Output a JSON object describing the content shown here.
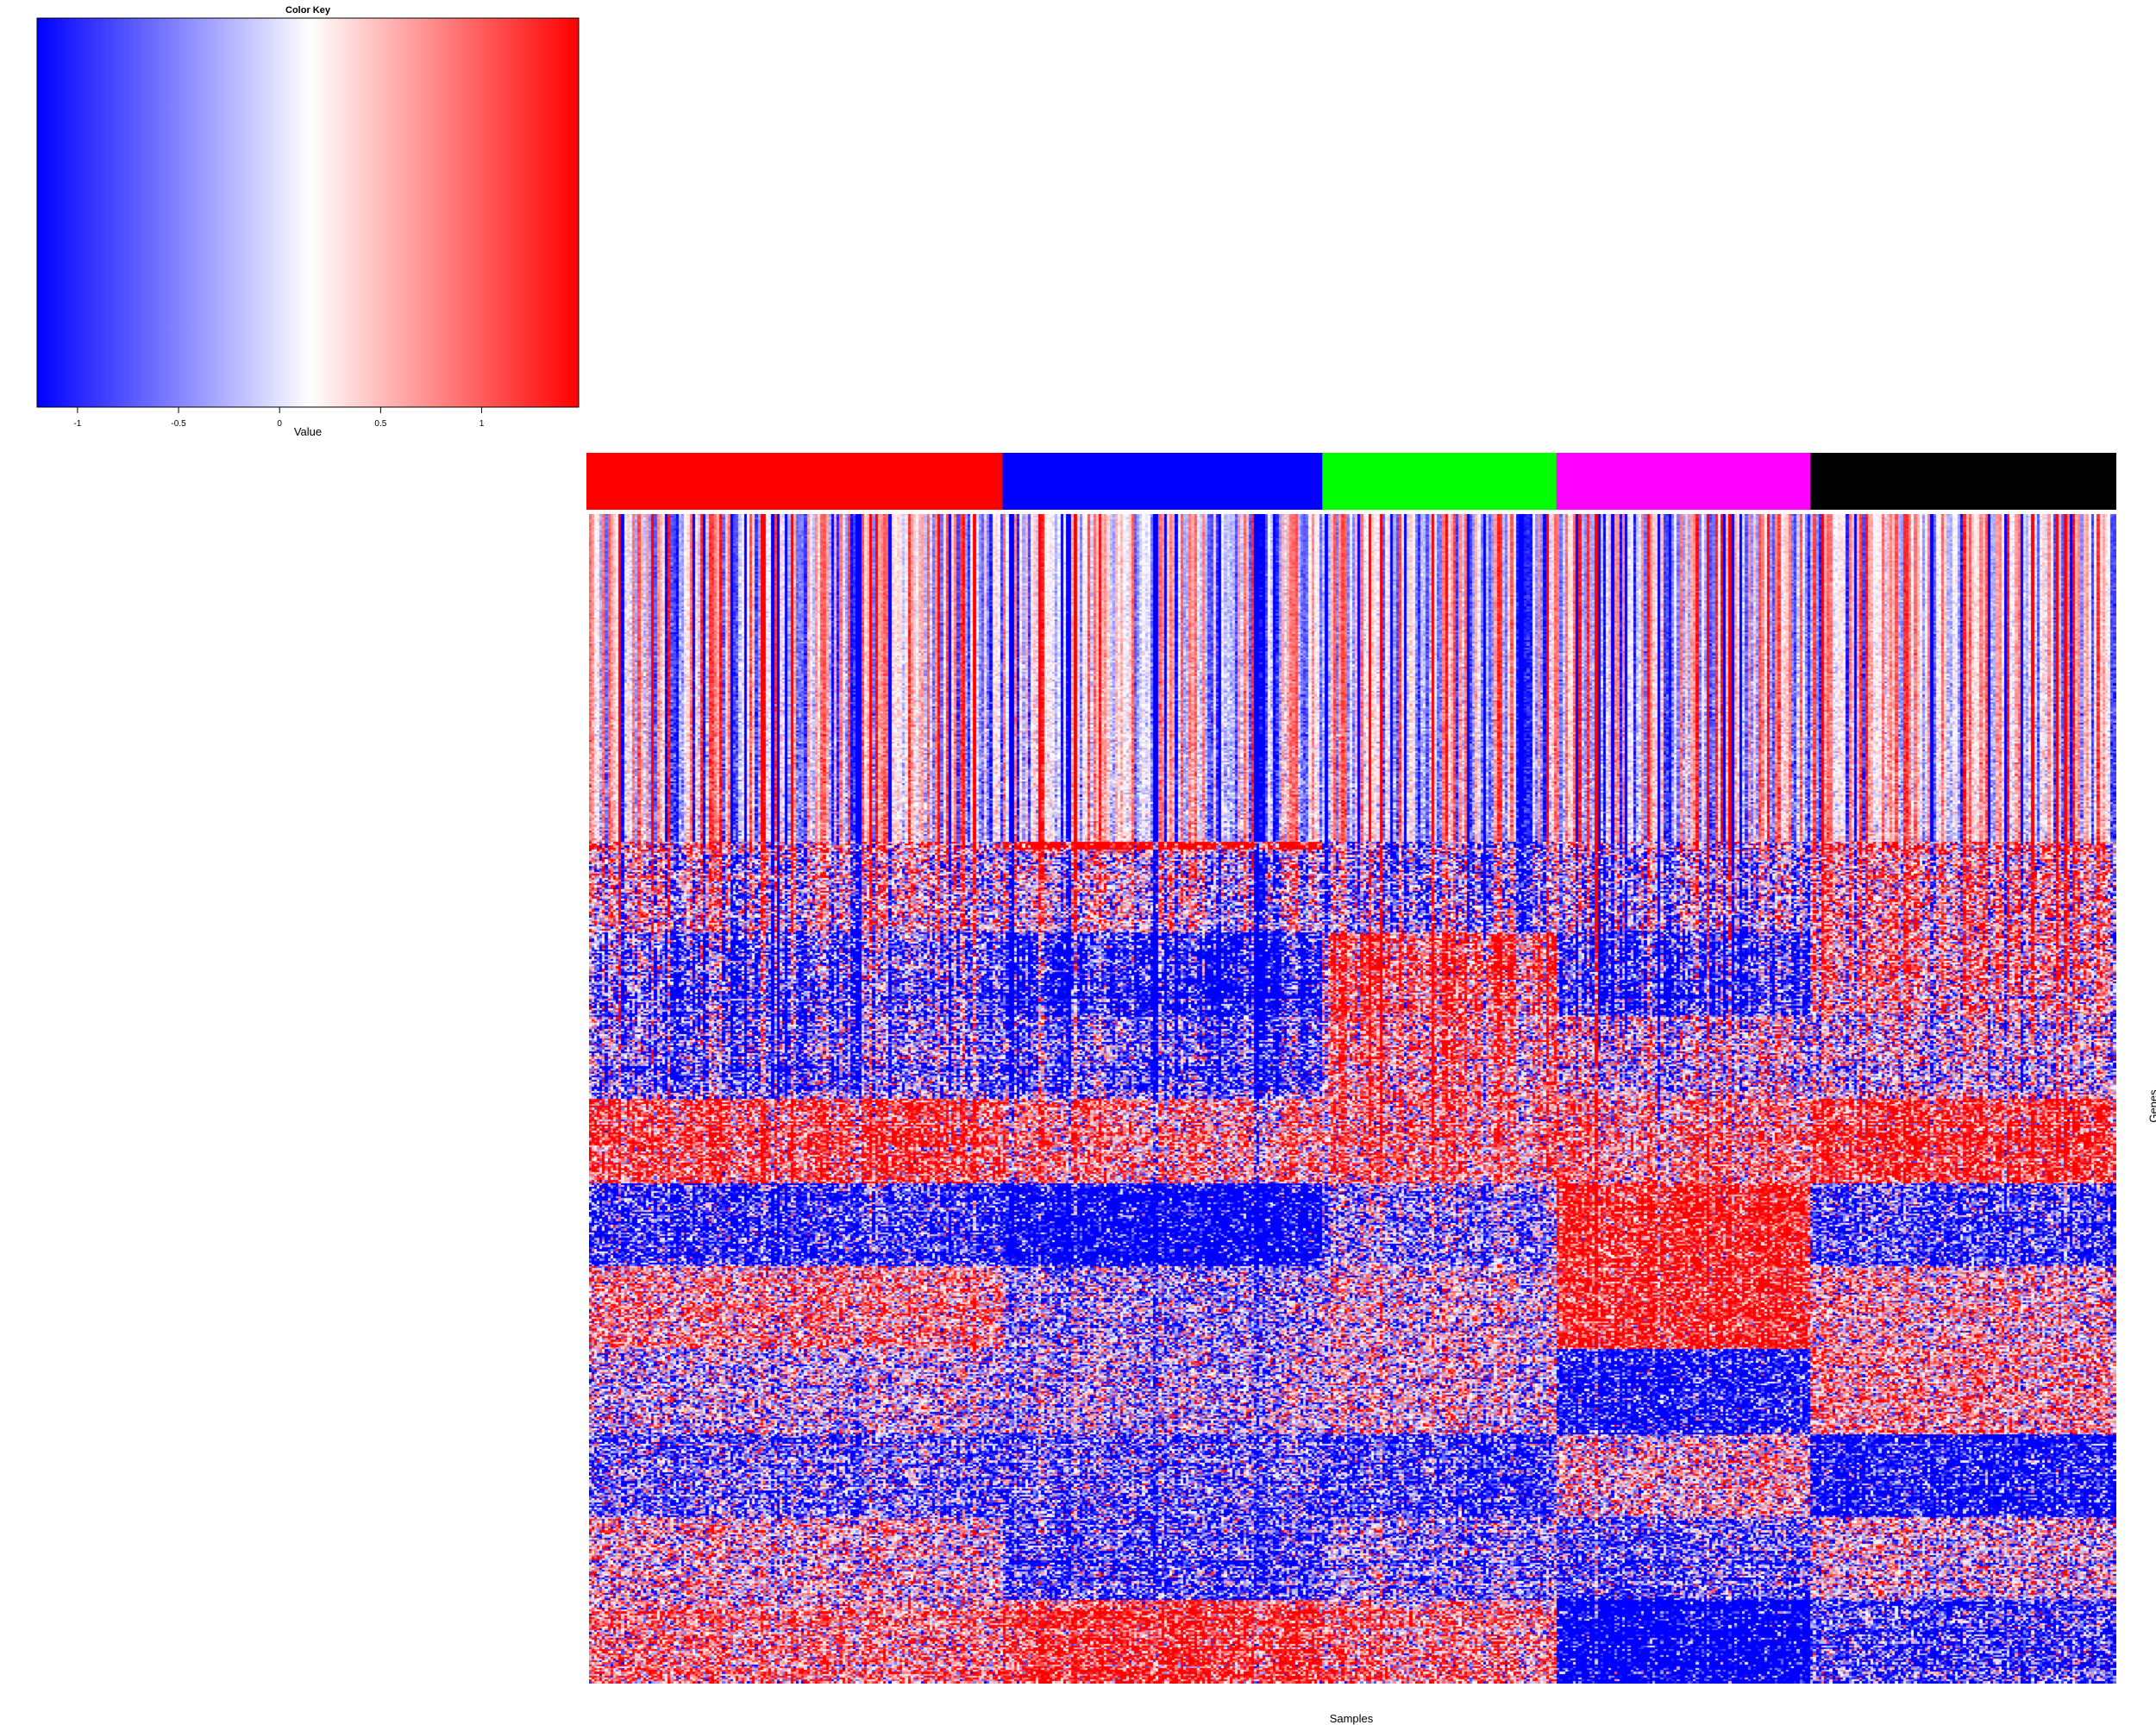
{
  "chart_data": [
    {
      "type": "colorbar",
      "title": "Color Key",
      "xlabel": "Value",
      "ticks": [
        "-1",
        "-0.5",
        "0",
        "0.5",
        "1"
      ],
      "tick_values": [
        -1,
        -0.5,
        0,
        0.5,
        1
      ],
      "range": [
        -1.2,
        1.48
      ],
      "gradient_colors": [
        "#0000ff",
        "#ffffff",
        "#ff0000"
      ],
      "white_at": 0.15
    },
    {
      "type": "heatmap",
      "xlabel": "Samples",
      "ylabel": "Genes",
      "color_scale": [
        "#0000ff",
        "#ffffff",
        "#ff0000"
      ],
      "value_range": [
        -1.2,
        1.48
      ],
      "column_groups": [
        {
          "color": "#ff0000",
          "fraction": 0.272
        },
        {
          "color": "#0000ff",
          "fraction": 0.209
        },
        {
          "color": "#00ff00",
          "fraction": 0.153
        },
        {
          "color": "#ff00ff",
          "fraction": 0.166
        },
        {
          "color": "#000000",
          "fraction": 0.2
        }
      ],
      "legend": "none",
      "grid": false
    }
  ]
}
